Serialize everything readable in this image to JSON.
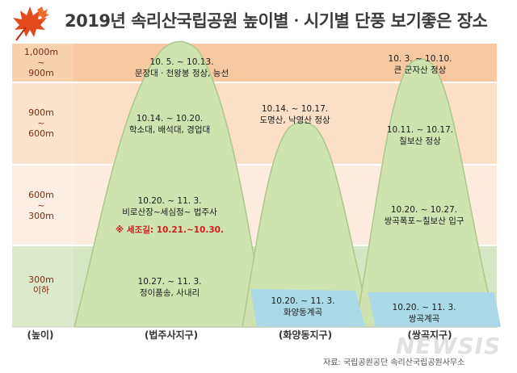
{
  "title": "2019년 속리산국립공원 높이별ㆍ시기별 단풍 보기좋은 장소",
  "bands": [
    {
      "label_top": "1,000m",
      "label_mid": "~",
      "label_bot": "900m"
    },
    {
      "label_top": "900m",
      "label_mid": "~",
      "label_bot": "600m"
    },
    {
      "label_top": "600m",
      "label_mid": "~",
      "label_bot": "300m"
    },
    {
      "label_top": "300m",
      "label_mid": "",
      "label_bot": "이하"
    }
  ],
  "height_axis_label": "(높이)",
  "districts": [
    {
      "name": "(법주사지구)"
    },
    {
      "name": "(화양동지구)"
    },
    {
      "name": "(쌍곡지구)"
    }
  ],
  "spots": {
    "b1": {
      "date": "10. 5. ~ 10.13.",
      "place": "문장대ㆍ천왕봉 정상, 능선"
    },
    "b2": {
      "date": "10.14. ~ 10.20.",
      "place": "학소대, 배석대, 경업대"
    },
    "b3": {
      "date": "10.20. ~ 11. 3.",
      "place": "비로산장~세심정~ 법주사"
    },
    "b3_note": "※ 세조길: 10.21.~10.30.",
    "b4": {
      "date": "10.27. ~ 11. 3.",
      "place": "정이품송, 사내리"
    },
    "h1": {
      "date": "10.14. ~ 10.17.",
      "place": "도명산, 낙영산 정상"
    },
    "h2": {
      "date": "10.20. ~ 11. 3.",
      "place": "화양동계곡"
    },
    "s1": {
      "date": "10. 3. ~ 10.10.",
      "place": "큰 군자산 정상"
    },
    "s2": {
      "date": "10.11. ~ 10.17.",
      "place": "칠보산 정상"
    },
    "s3": {
      "date": "10.20. ~ 10.27.",
      "place": "쌍곡폭포~칠보산 입구"
    },
    "s4": {
      "date": "10.20. ~ 11. 3.",
      "place": "쌍곡계곡"
    }
  },
  "source": "자료: 국립공원공단 속리산국립공원사무소",
  "watermark": "NEWSIS",
  "colors": {
    "band1": "#f7c9a2",
    "band2": "#fbdfc6",
    "band3": "#fdecde",
    "band4": "#d7e6c2",
    "mountain": "#cfe3b1",
    "mountain_edge": "#9dc07a",
    "valley": "#a9d8ea",
    "accent": "#d21a1a"
  }
}
